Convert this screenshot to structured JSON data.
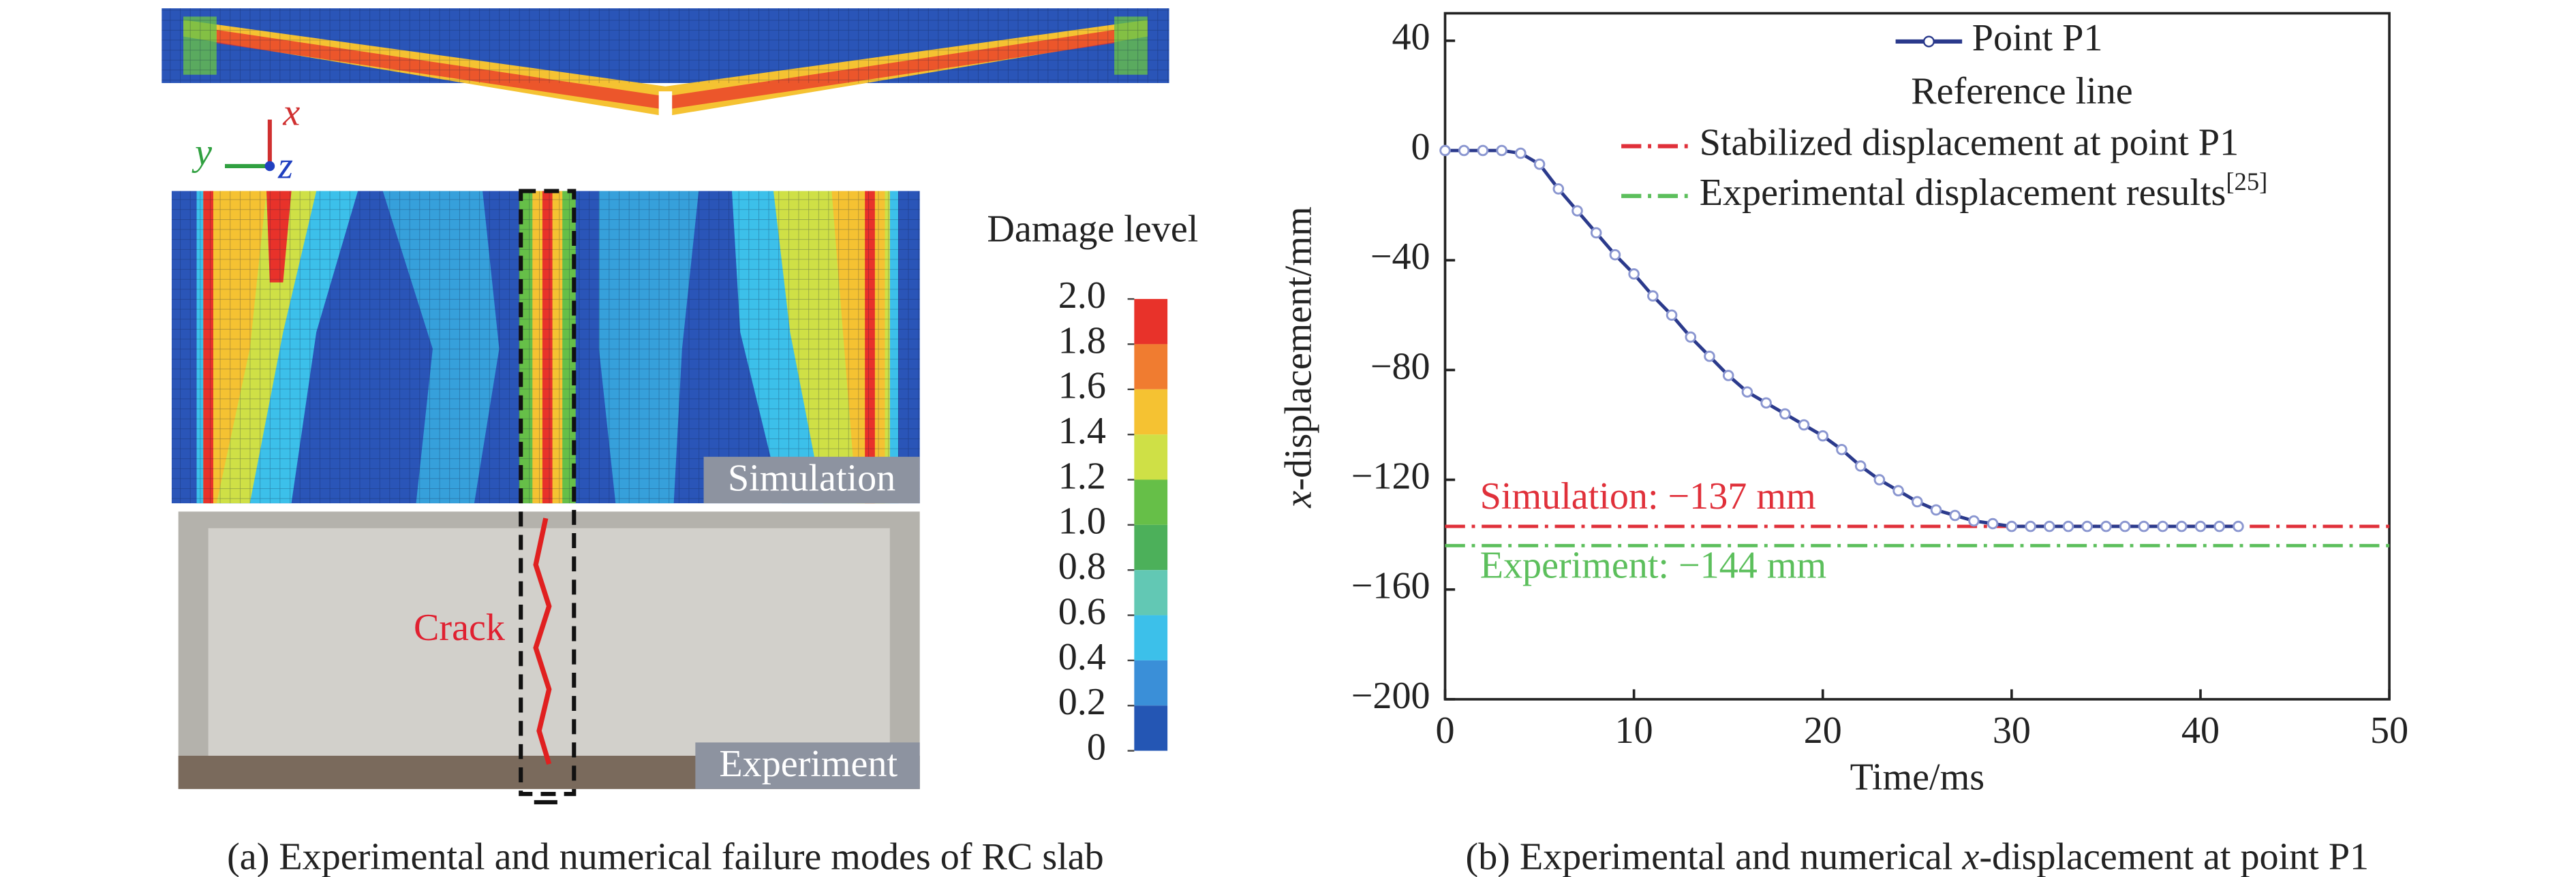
{
  "panel_a": {
    "axes": {
      "x": "x",
      "y": "y",
      "z": "z"
    },
    "labels": {
      "simulation": "Simulation",
      "experiment": "Experiment",
      "crack": "Crack"
    },
    "colorbar": {
      "title": "Damage level",
      "ticks": [
        {
          "value": 2,
          "label": "2.0"
        },
        {
          "value": 1.8,
          "label": "1.8"
        },
        {
          "value": 1.6,
          "label": "1.6"
        },
        {
          "value": 1.4,
          "label": "1.4"
        },
        {
          "value": 1.2,
          "label": "1.2"
        },
        {
          "value": 1,
          "label": "1.0"
        },
        {
          "value": 0.8,
          "label": "0.8"
        },
        {
          "value": 0.6,
          "label": "0.6"
        },
        {
          "value": 0.4,
          "label": "0.4"
        },
        {
          "value": 0.2,
          "label": "0.2"
        },
        0
      ],
      "colors": [
        "#e8322a",
        "#f07c30",
        "#f5c232",
        "#cfe046",
        "#66bf48",
        "#4cb05a",
        "#62c8b4",
        "#3cc0ea",
        "#3a8fd8",
        "#2456b4"
      ]
    },
    "caption": "(a) Experimental and numerical failure modes of RC slab"
  },
  "chart_data": {
    "type": "line",
    "caption": [
      "(b) Experimental and numerical ",
      "x",
      "-displacement at point P1"
    ],
    "x_label": "Time/ms",
    "y_label": [
      "x",
      "-displacement/mm"
    ],
    "x": [
      0,
      1,
      2,
      3,
      4,
      5,
      6,
      7,
      8,
      9,
      10,
      11,
      12,
      13,
      14,
      15,
      16,
      17,
      18,
      19,
      20,
      21,
      22,
      23,
      24,
      25,
      26,
      27,
      28,
      29,
      30,
      31,
      32,
      33,
      34,
      35,
      36,
      37,
      38,
      39,
      40,
      41,
      42
    ],
    "series": [
      {
        "name": "Point P1",
        "color": "#2b3a8c",
        "values": [
          0,
          0,
          0,
          0,
          -1,
          -5,
          -14,
          -22,
          -30,
          -38,
          -45,
          -53,
          -60,
          -68,
          -75,
          -82,
          -88,
          -92,
          -96,
          -100,
          -104,
          -109,
          -115,
          -120,
          -124,
          -128,
          -131,
          -133,
          -135,
          -136,
          -137,
          -137,
          -137,
          -137,
          -137,
          -137,
          -137,
          -137,
          -137,
          -137,
          -137,
          -137,
          -137
        ]
      }
    ],
    "legend_heading": "Reference line",
    "reference_lines": [
      {
        "name": "Stabilized displacement at point P1",
        "value": -137,
        "color": "#e0303a",
        "annotation": "Simulation: −137 mm"
      },
      {
        "name": "Experimental displacement results",
        "citation": "[25]",
        "value": -144,
        "color": "#5cbf5c",
        "annotation": "Experiment: −144 mm"
      }
    ],
    "xlim": [
      0,
      50
    ],
    "xticks": [
      0,
      10,
      20,
      30,
      40,
      50
    ],
    "ylim": [
      -200,
      50
    ],
    "yticks": [
      {
        "value": -200,
        "label": "−200"
      },
      {
        "value": -160,
        "label": "−160"
      },
      {
        "value": -120,
        "label": "−120"
      },
      {
        "value": -80,
        "label": "−80"
      },
      {
        "value": -40,
        "label": "−40"
      },
      0,
      40
    ]
  }
}
